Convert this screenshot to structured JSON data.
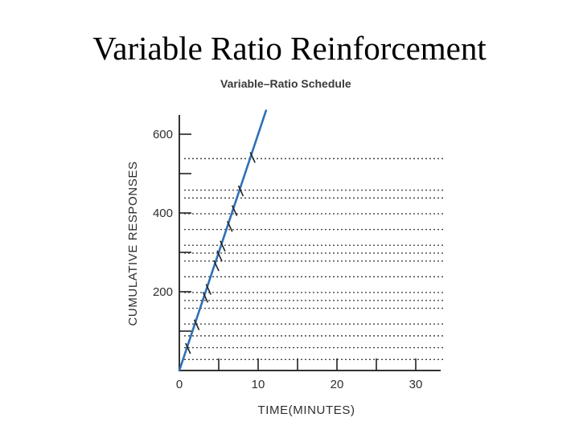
{
  "slide": {
    "title": "Variable Ratio Reinforcement"
  },
  "chart_data": {
    "type": "line",
    "title": "Variable–Ratio Schedule",
    "xlabel": "TIME(MINUTES)",
    "ylabel": "CUMULATIVE RESPONSES",
    "xlim": [
      0,
      33
    ],
    "ylim": [
      0,
      610
    ],
    "x_ticks": [
      0,
      5,
      10,
      15,
      20,
      25,
      30
    ],
    "x_tick_labels": [
      "0",
      "",
      "10",
      "",
      "20",
      "",
      "30"
    ],
    "y_ticks": [
      0,
      100,
      200,
      300,
      400,
      500,
      600
    ],
    "y_tick_labels": [
      "",
      "",
      "200",
      "",
      "400",
      "",
      "600"
    ],
    "grid": "dotted horizontal lines",
    "series": [
      {
        "x": [
          0,
          11
        ],
        "y": [
          0,
          660
        ]
      }
    ],
    "reinforcements": [
      {
        "x": 1.0,
        "y": 55
      },
      {
        "x": 2.1,
        "y": 115
      },
      {
        "x": 3.2,
        "y": 185
      },
      {
        "x": 3.6,
        "y": 205
      },
      {
        "x": 4.6,
        "y": 265
      },
      {
        "x": 5.0,
        "y": 290
      },
      {
        "x": 5.4,
        "y": 315
      },
      {
        "x": 6.3,
        "y": 365
      },
      {
        "x": 6.9,
        "y": 405
      },
      {
        "x": 7.7,
        "y": 455
      },
      {
        "x": 9.2,
        "y": 540
      }
    ],
    "dotted_levels": [
      28,
      58,
      88,
      118,
      158,
      178,
      198,
      238,
      278,
      298,
      318,
      358,
      398,
      438,
      458,
      538
    ]
  },
  "colors": {
    "line": "#2f6fb6",
    "axis": "#333333",
    "grid": "#444444",
    "tick_mark": "#222222"
  }
}
